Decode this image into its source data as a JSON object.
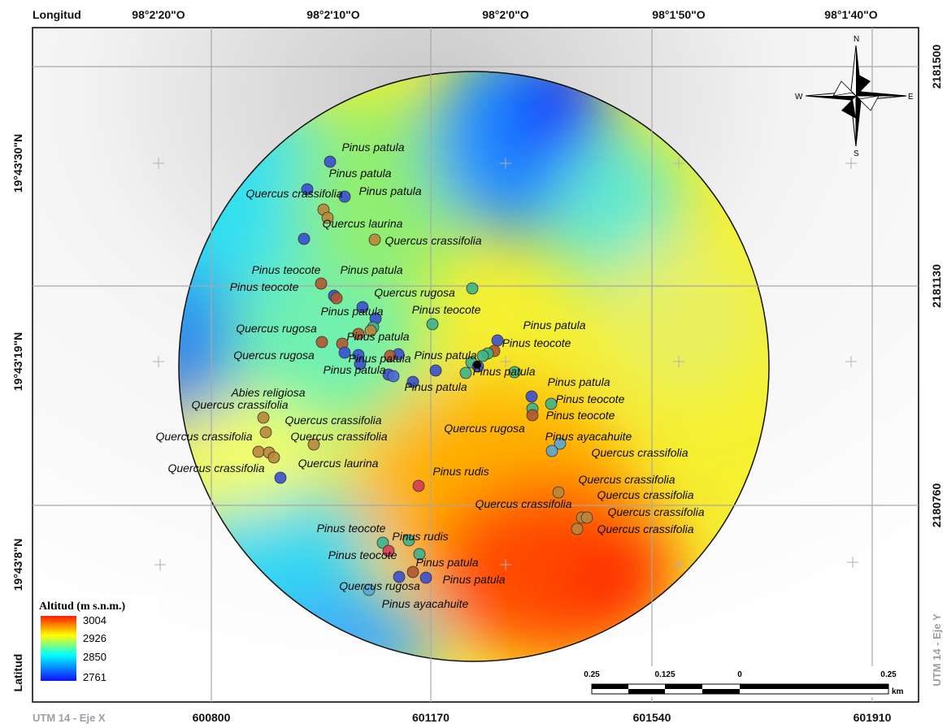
{
  "axes": {
    "longitude_title": "Longitud",
    "latitude_title": "Latitud",
    "utm_x_title": "UTM 14 - Eje X",
    "utm_y_title": "UTM 14 - Eje Y",
    "lon_ticks": [
      "98°2'20\"O",
      "98°2'10\"O",
      "98°2'0\"O",
      "98°1'50\"O",
      "98°1'40\"O"
    ],
    "lat_ticks": [
      "19°43'30\"N",
      "19°43'19\"N",
      "19°43'8\"N"
    ],
    "utm_x_ticks": [
      "600800",
      "601170",
      "601540",
      "601910"
    ],
    "utm_y_ticks": [
      "2181500",
      "2181130",
      "2180760"
    ]
  },
  "legend": {
    "title": "Altitud (m s.n.m.)",
    "values": [
      "3004",
      "2926",
      "2850",
      "2761"
    ]
  },
  "scale_bar": {
    "labels": [
      "0.25",
      "0.125",
      "0",
      "0.25"
    ],
    "unit": "km"
  },
  "compass": {
    "n": "N",
    "s": "S",
    "e": "E",
    "w": "W"
  },
  "colors": {
    "low": "#1a1aff",
    "mid_low": "#00e5ff",
    "mid": "#ffff00",
    "high": "#ff2a00",
    "pinus_patula": "#3a4fd0",
    "pinus_teocote": "#3db38a",
    "quercus_crassifolia": "#b8873a",
    "quercus_rugosa": "#b25530",
    "quercus_laurina": "#b8873a",
    "pinus_rudis": "#d63a55",
    "pinus_ayacahuite": "#5aa7d6",
    "abies_religiosa": "#4a6ad8"
  },
  "species_labels": [
    {
      "name": "Pinus patula"
    },
    {
      "name": "Pinus patula"
    },
    {
      "name": "Quercus crassifolia"
    },
    {
      "name": "Pinus patula"
    },
    {
      "name": "Quercus laurina"
    },
    {
      "name": "Quercus crassifolia"
    },
    {
      "name": "Pinus teocote"
    },
    {
      "name": "Pinus patula"
    },
    {
      "name": "Pinus teocote"
    },
    {
      "name": "Quercus rugosa"
    },
    {
      "name": "Pinus patula"
    },
    {
      "name": "Pinus teocote"
    },
    {
      "name": "Pinus patula"
    },
    {
      "name": "Quercus rugosa"
    },
    {
      "name": "Pinus patula"
    },
    {
      "name": "Pinus patula"
    },
    {
      "name": "Pinus teocote"
    },
    {
      "name": "Quercus rugosa"
    },
    {
      "name": "Pinus patula"
    },
    {
      "name": "Pinus patula"
    },
    {
      "name": "Pinus patula"
    },
    {
      "name": "Pinus patula"
    },
    {
      "name": "Abies religiosa"
    },
    {
      "name": "Pinus patula"
    },
    {
      "name": "Pinus teocote"
    },
    {
      "name": "Quercus crassifolia"
    },
    {
      "name": "Pinus teocote"
    },
    {
      "name": "Quercus crassifolia"
    },
    {
      "name": "Quercus rugosa"
    },
    {
      "name": "Quercus crassifolia"
    },
    {
      "name": "Quercus crassifolia"
    },
    {
      "name": "Pinus ayacahuite"
    },
    {
      "name": "Quercus crassifolia"
    },
    {
      "name": "Quercus crassifolia"
    },
    {
      "name": "Quercus laurina"
    },
    {
      "name": "Pinus rudis"
    },
    {
      "name": "Quercus crassifolia"
    },
    {
      "name": "Quercus crassifolia"
    },
    {
      "name": "Quercus crassifolia"
    },
    {
      "name": "Quercus crassifolia"
    },
    {
      "name": "Quercus crassifolia"
    },
    {
      "name": "Pinus teocote"
    },
    {
      "name": "Pinus rudis"
    },
    {
      "name": "Pinus teocote"
    },
    {
      "name": "Pinus patula"
    },
    {
      "name": "Quercus rugosa"
    },
    {
      "name": "Pinus patula"
    },
    {
      "name": "Pinus ayacahuite"
    }
  ]
}
